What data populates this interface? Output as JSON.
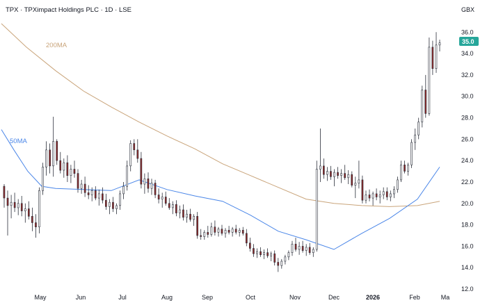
{
  "chart_data": {
    "type": "candlestick",
    "title": "TPX · TPXimpact Holdings PLC · 1D · LSE",
    "currency": "GBX",
    "ylim": [
      12,
      36.8
    ],
    "yticks": [
      12,
      14,
      16,
      18,
      20,
      22,
      24,
      26,
      28,
      30,
      32,
      34,
      36
    ],
    "xlabels": [
      "May",
      "Jun",
      "Jul",
      "Aug",
      "Sep",
      "Oct",
      "Nov",
      "Dec",
      "2026",
      "Feb",
      "Ma"
    ],
    "last_price": "35.0",
    "ma_labels": {
      "ma200": "200MA",
      "ma50": "50MA"
    },
    "colors": {
      "up": "#26a69a",
      "down": "#ef5350",
      "candle": "#2a2e39",
      "ma200": "#c9a47a",
      "ma50": "#4a86e8",
      "last": "#26a69a"
    },
    "candles": [
      [
        21.6,
        21.8,
        19.6,
        20.5
      ],
      [
        20.5,
        21.2,
        17.0,
        19.8
      ],
      [
        19.8,
        20.8,
        18.6,
        20.1
      ],
      [
        20.1,
        21.0,
        19.2,
        19.6
      ],
      [
        19.6,
        20.4,
        18.9,
        20.0
      ],
      [
        20.0,
        20.7,
        18.8,
        19.3
      ],
      [
        19.3,
        20.0,
        18.2,
        19.5
      ],
      [
        19.5,
        20.2,
        18.5,
        18.8
      ],
      [
        18.8,
        19.6,
        17.4,
        18.2
      ],
      [
        18.2,
        19.0,
        16.8,
        17.8
      ],
      [
        17.8,
        21.5,
        17.2,
        21.2
      ],
      [
        21.2,
        23.8,
        20.8,
        23.4
      ],
      [
        23.4,
        25.8,
        22.6,
        25.0
      ],
      [
        25.0,
        25.6,
        22.8,
        23.5
      ],
      [
        23.5,
        28.1,
        22.5,
        25.8
      ],
      [
        25.8,
        26.0,
        23.6,
        24.0
      ],
      [
        24.0,
        24.8,
        22.8,
        23.1
      ],
      [
        23.1,
        24.2,
        22.4,
        23.8
      ],
      [
        23.8,
        24.5,
        22.0,
        22.6
      ],
      [
        22.6,
        23.6,
        21.9,
        23.2
      ],
      [
        23.2,
        24.0,
        22.4,
        22.8
      ],
      [
        22.8,
        23.2,
        21.0,
        21.4
      ],
      [
        21.4,
        22.2,
        20.9,
        21.8
      ],
      [
        21.8,
        22.5,
        20.6,
        21.0
      ],
      [
        21.0,
        21.7,
        20.4,
        20.8
      ],
      [
        20.8,
        21.5,
        20.2,
        21.2
      ],
      [
        21.2,
        21.6,
        20.3,
        20.5
      ],
      [
        20.5,
        21.3,
        19.8,
        20.9
      ],
      [
        20.9,
        21.5,
        20.0,
        20.3
      ],
      [
        20.3,
        20.9,
        19.4,
        19.7
      ],
      [
        19.7,
        20.4,
        19.0,
        20.1
      ],
      [
        20.1,
        20.6,
        19.2,
        19.5
      ],
      [
        19.5,
        20.0,
        19.0,
        19.8
      ],
      [
        19.8,
        21.2,
        19.4,
        20.9
      ],
      [
        20.9,
        22.0,
        20.4,
        21.6
      ],
      [
        21.6,
        24.0,
        21.2,
        23.5
      ],
      [
        23.5,
        25.9,
        23.0,
        25.6
      ],
      [
        25.6,
        26.0,
        24.5,
        25.0
      ],
      [
        25.0,
        26.0,
        23.8,
        24.2
      ],
      [
        24.2,
        24.8,
        21.4,
        21.8
      ],
      [
        21.8,
        22.8,
        20.9,
        22.3
      ],
      [
        22.3,
        22.9,
        21.0,
        21.4
      ],
      [
        21.4,
        22.3,
        20.8,
        21.9
      ],
      [
        21.9,
        22.2,
        20.5,
        20.8
      ],
      [
        20.8,
        21.4,
        20.0,
        20.4
      ],
      [
        20.4,
        21.0,
        19.6,
        20.6
      ],
      [
        20.6,
        21.1,
        19.8,
        20.0
      ],
      [
        20.0,
        20.5,
        19.4,
        19.6
      ],
      [
        19.6,
        20.2,
        19.0,
        19.9
      ],
      [
        19.9,
        20.3,
        18.8,
        19.1
      ],
      [
        19.1,
        19.8,
        18.6,
        19.4
      ],
      [
        19.4,
        19.9,
        18.4,
        18.7
      ],
      [
        18.7,
        19.4,
        18.2,
        19.0
      ],
      [
        19.0,
        19.5,
        18.3,
        18.5
      ],
      [
        18.5,
        19.0,
        17.9,
        18.8
      ],
      [
        18.8,
        19.2,
        16.7,
        17.0
      ],
      [
        17.0,
        17.6,
        16.6,
        16.9
      ],
      [
        16.9,
        17.5,
        16.6,
        17.3
      ],
      [
        17.3,
        17.9,
        16.8,
        17.1
      ],
      [
        17.1,
        18.2,
        16.9,
        17.8
      ],
      [
        17.8,
        18.4,
        17.0,
        17.3
      ],
      [
        17.3,
        17.8,
        16.9,
        17.6
      ],
      [
        17.6,
        18.0,
        17.0,
        17.2
      ],
      [
        17.2,
        17.7,
        16.8,
        17.5
      ],
      [
        17.5,
        17.9,
        17.1,
        17.3
      ],
      [
        17.3,
        17.8,
        16.9,
        17.6
      ],
      [
        17.6,
        18.0,
        17.1,
        17.3
      ],
      [
        17.3,
        17.7,
        16.9,
        17.5
      ],
      [
        17.5,
        17.8,
        17.0,
        17.2
      ],
      [
        17.2,
        17.6,
        16.0,
        16.3
      ],
      [
        16.3,
        16.8,
        15.5,
        15.8
      ],
      [
        15.8,
        16.2,
        15.0,
        15.3
      ],
      [
        15.3,
        15.8,
        14.9,
        15.5
      ],
      [
        15.5,
        15.9,
        15.0,
        15.2
      ],
      [
        15.2,
        15.7,
        14.8,
        15.4
      ],
      [
        15.4,
        15.8,
        14.9,
        15.1
      ],
      [
        15.1,
        15.5,
        14.6,
        15.3
      ],
      [
        15.3,
        15.6,
        14.2,
        14.5
      ],
      [
        14.5,
        14.9,
        13.6,
        14.2
      ],
      [
        14.2,
        14.8,
        13.9,
        14.6
      ],
      [
        14.6,
        15.2,
        14.3,
        15.0
      ],
      [
        15.0,
        15.6,
        14.7,
        15.4
      ],
      [
        15.4,
        16.5,
        15.1,
        16.2
      ],
      [
        16.2,
        16.8,
        15.5,
        15.7
      ],
      [
        15.7,
        16.4,
        15.2,
        16.0
      ],
      [
        16.0,
        16.5,
        15.4,
        15.6
      ],
      [
        15.6,
        16.2,
        15.1,
        15.9
      ],
      [
        15.9,
        16.3,
        15.2,
        15.4
      ],
      [
        15.4,
        15.9,
        15.0,
        15.7
      ],
      [
        15.7,
        24.0,
        15.5,
        23.2
      ],
      [
        23.2,
        27.0,
        22.0,
        23.5
      ],
      [
        23.5,
        24.2,
        22.3,
        22.7
      ],
      [
        22.7,
        23.4,
        22.1,
        23.0
      ],
      [
        23.0,
        23.5,
        22.2,
        22.5
      ],
      [
        22.5,
        23.2,
        21.6,
        22.9
      ],
      [
        22.9,
        23.4,
        22.3,
        22.6
      ],
      [
        22.6,
        23.2,
        21.9,
        22.8
      ],
      [
        22.8,
        23.6,
        22.2,
        22.4
      ],
      [
        22.4,
        23.1,
        21.8,
        22.7
      ],
      [
        22.7,
        23.0,
        21.5,
        21.7
      ],
      [
        21.7,
        22.5,
        20.5,
        21.9
      ],
      [
        21.9,
        24.0,
        21.4,
        22.2
      ],
      [
        22.2,
        22.6,
        20.0,
        20.3
      ],
      [
        20.3,
        21.2,
        20.0,
        20.8
      ],
      [
        20.8,
        21.3,
        20.2,
        20.5
      ],
      [
        20.5,
        21.1,
        19.8,
        20.9
      ],
      [
        20.9,
        21.4,
        20.3,
        20.6
      ],
      [
        20.6,
        21.2,
        20.0,
        20.8
      ],
      [
        20.8,
        21.5,
        20.4,
        21.1
      ],
      [
        21.1,
        21.5,
        20.3,
        20.6
      ],
      [
        20.6,
        21.2,
        20.2,
        20.9
      ],
      [
        20.9,
        21.6,
        20.5,
        21.3
      ],
      [
        21.3,
        22.5,
        21.0,
        22.2
      ],
      [
        22.2,
        24.0,
        22.0,
        23.6
      ],
      [
        23.6,
        24.0,
        22.8,
        23.0
      ],
      [
        23.0,
        23.8,
        22.6,
        23.6
      ],
      [
        23.6,
        26.0,
        23.3,
        25.7
      ],
      [
        25.7,
        27.0,
        25.0,
        26.4
      ],
      [
        26.4,
        28.0,
        26.0,
        27.6
      ],
      [
        27.6,
        31.0,
        27.1,
        30.6
      ],
      [
        30.6,
        32.0,
        28.0,
        28.4
      ],
      [
        28.4,
        35.5,
        28.2,
        34.6
      ],
      [
        34.6,
        35.2,
        32.0,
        32.6
      ],
      [
        32.6,
        36.0,
        32.2,
        34.8
      ],
      [
        34.8,
        35.3,
        34.2,
        35.0
      ]
    ],
    "ma200": [
      [
        2,
        36.8
      ],
      [
        38,
        34.6
      ],
      [
        80,
        32.4
      ],
      [
        120,
        30.5
      ],
      [
        160,
        29.0
      ],
      [
        200,
        27.6
      ],
      [
        240,
        26.3
      ],
      [
        280,
        25.1
      ],
      [
        320,
        23.7
      ],
      [
        360,
        22.6
      ],
      [
        400,
        21.5
      ],
      [
        440,
        20.4
      ],
      [
        480,
        20.0
      ],
      [
        520,
        19.8
      ],
      [
        560,
        19.7
      ],
      [
        600,
        19.8
      ],
      [
        632,
        20.2
      ]
    ],
    "ma50": [
      [
        2,
        26.9
      ],
      [
        20,
        25.0
      ],
      [
        40,
        23.0
      ],
      [
        60,
        21.6
      ],
      [
        80,
        21.4
      ],
      [
        120,
        21.3
      ],
      [
        160,
        21.2
      ],
      [
        200,
        22.2
      ],
      [
        240,
        21.3
      ],
      [
        280,
        20.7
      ],
      [
        320,
        20.2
      ],
      [
        360,
        18.9
      ],
      [
        400,
        17.4
      ],
      [
        440,
        16.6
      ],
      [
        480,
        15.7
      ],
      [
        520,
        17.2
      ],
      [
        560,
        18.6
      ],
      [
        600,
        20.4
      ],
      [
        632,
        23.4
      ]
    ]
  }
}
